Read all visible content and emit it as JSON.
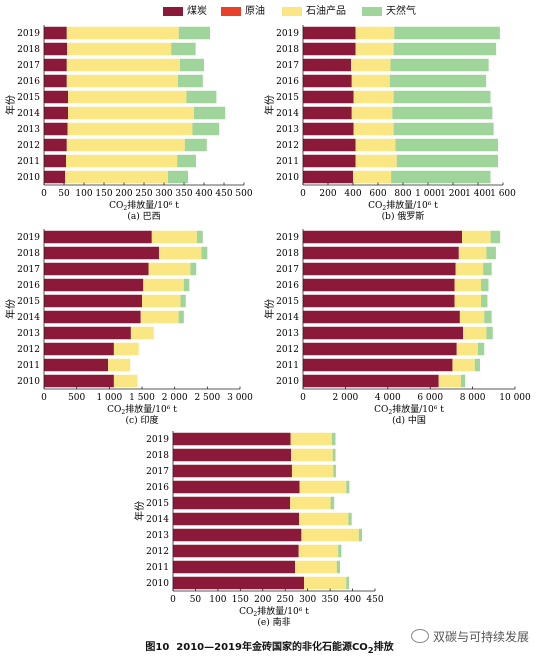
{
  "legend": {
    "coal": {
      "label": "煤炭",
      "color": "#8b1a3a"
    },
    "crude": {
      "label": "原油",
      "color": "#e8402a"
    },
    "oil_products": {
      "label": "石油产品",
      "color": "#fae784"
    },
    "gas": {
      "label": "天然气",
      "color": "#9fd49a"
    }
  },
  "common": {
    "y_label": "年份",
    "x_label_prefix": "CO",
    "x_label_sub": "2",
    "x_label_suffix": "排放量/10⁶ t"
  },
  "chart_data": [
    {
      "id": "brazil",
      "type": "bar",
      "orientation": "horizontal",
      "stacked": true,
      "caption": "(a) 巴西",
      "categories": [
        "2019",
        "2018",
        "2017",
        "2016",
        "2015",
        "2014",
        "2013",
        "2012",
        "2011",
        "2010"
      ],
      "xlim": [
        0,
        500
      ],
      "xticks": [
        0,
        50,
        100,
        150,
        200,
        250,
        300,
        350,
        400,
        450,
        500
      ],
      "xtick_labels": [
        "0",
        "50",
        "100",
        "150",
        "200",
        "250",
        "300",
        "350",
        "400",
        "450",
        "500"
      ],
      "series": [
        {
          "key": "coal",
          "values": [
            57,
            58,
            57,
            57,
            60,
            60,
            59,
            57,
            55,
            53
          ]
        },
        {
          "key": "crude",
          "values": [
            0,
            0,
            0,
            0,
            0,
            0,
            0,
            0,
            0,
            0
          ]
        },
        {
          "key": "oil_products",
          "values": [
            280,
            260,
            283,
            278,
            296,
            315,
            312,
            295,
            278,
            257
          ]
        },
        {
          "key": "gas",
          "values": [
            78,
            61,
            60,
            62,
            75,
            78,
            67,
            55,
            47,
            50
          ]
        }
      ]
    },
    {
      "id": "russia",
      "type": "bar",
      "orientation": "horizontal",
      "stacked": true,
      "caption": "(b) 俄罗斯",
      "categories": [
        "2019",
        "2018",
        "2017",
        "2016",
        "2015",
        "2014",
        "2013",
        "2012",
        "2011",
        "2010"
      ],
      "xlim": [
        0,
        1600
      ],
      "xticks": [
        0,
        200,
        400,
        600,
        800,
        1000,
        1200,
        1400,
        1600
      ],
      "xtick_labels": [
        "0",
        "200",
        "400",
        "600",
        "800",
        "1 000",
        "1 200",
        "1 400",
        "1 600"
      ],
      "series": [
        {
          "key": "coal",
          "values": [
            420,
            420,
            385,
            390,
            405,
            390,
            405,
            420,
            420,
            400
          ]
        },
        {
          "key": "crude",
          "values": [
            0,
            0,
            0,
            0,
            0,
            0,
            0,
            0,
            0,
            0
          ]
        },
        {
          "key": "oil_products",
          "values": [
            310,
            305,
            315,
            305,
            320,
            325,
            320,
            320,
            330,
            305
          ]
        },
        {
          "key": "gas",
          "values": [
            845,
            820,
            785,
            770,
            775,
            800,
            800,
            820,
            810,
            795
          ]
        }
      ]
    },
    {
      "id": "india",
      "type": "bar",
      "orientation": "horizontal",
      "stacked": true,
      "caption": "(c) 印度",
      "categories": [
        "2019",
        "2018",
        "2017",
        "2016",
        "2015",
        "2014",
        "2013",
        "2012",
        "2011",
        "2010"
      ],
      "xlim": [
        0,
        3000
      ],
      "xticks": [
        0,
        500,
        1000,
        1500,
        2000,
        2500,
        3000
      ],
      "xtick_labels": [
        "0",
        "500",
        "1 000",
        "1 500",
        "2 000",
        "2 500",
        "3 000"
      ],
      "series": [
        {
          "key": "coal",
          "values": [
            1650,
            1760,
            1600,
            1520,
            1500,
            1480,
            1330,
            1070,
            980,
            1070
          ]
        },
        {
          "key": "crude",
          "values": [
            0,
            0,
            0,
            0,
            0,
            0,
            0,
            0,
            0,
            0
          ]
        },
        {
          "key": "oil_products",
          "values": [
            690,
            650,
            640,
            620,
            590,
            580,
            350,
            380,
            340,
            360
          ]
        },
        {
          "key": "gas",
          "values": [
            90,
            90,
            90,
            85,
            80,
            80,
            0,
            0,
            0,
            0
          ]
        }
      ]
    },
    {
      "id": "china",
      "type": "bar",
      "orientation": "horizontal",
      "stacked": true,
      "caption": "(d) 中国",
      "categories": [
        "2019",
        "2018",
        "2017",
        "2016",
        "2015",
        "2014",
        "2013",
        "2012",
        "2011",
        "2010"
      ],
      "xlim": [
        0,
        10000
      ],
      "xticks": [
        0,
        2000,
        4000,
        6000,
        8000,
        10000
      ],
      "xtick_labels": [
        "0",
        "2 000",
        "4 000",
        "6 000",
        "8 000",
        "10 000"
      ],
      "series": [
        {
          "key": "coal",
          "values": [
            7500,
            7350,
            7200,
            7150,
            7150,
            7400,
            7550,
            7250,
            7050,
            6400
          ]
        },
        {
          "key": "crude",
          "values": [
            0,
            0,
            0,
            0,
            0,
            0,
            0,
            0,
            0,
            0
          ]
        },
        {
          "key": "oil_products",
          "values": [
            1350,
            1300,
            1300,
            1250,
            1250,
            1150,
            1100,
            1000,
            1050,
            1050
          ]
        },
        {
          "key": "gas",
          "values": [
            450,
            450,
            400,
            350,
            300,
            350,
            300,
            300,
            250,
            200
          ]
        }
      ]
    },
    {
      "id": "south_africa",
      "type": "bar",
      "orientation": "horizontal",
      "stacked": true,
      "caption": "(e) 南非",
      "categories": [
        "2019",
        "2018",
        "2017",
        "2016",
        "2015",
        "2014",
        "2013",
        "2012",
        "2011",
        "2010"
      ],
      "xlim": [
        0,
        450
      ],
      "xticks": [
        0,
        50,
        100,
        150,
        200,
        250,
        300,
        350,
        400,
        450
      ],
      "xtick_labels": [
        "0",
        "50",
        "100",
        "150",
        "200",
        "250",
        "300",
        "350",
        "400",
        "450"
      ],
      "series": [
        {
          "key": "coal",
          "values": [
            262,
            263,
            265,
            282,
            261,
            281,
            286,
            280,
            272,
            292
          ]
        },
        {
          "key": "crude",
          "values": [
            0,
            0,
            0,
            0,
            0,
            0,
            0,
            0,
            0,
            0
          ]
        },
        {
          "key": "oil_products",
          "values": [
            92,
            93,
            92,
            104,
            90,
            110,
            128,
            88,
            93,
            94
          ]
        },
        {
          "key": "gas",
          "values": [
            8,
            6,
            6,
            7,
            8,
            7,
            7,
            7,
            7,
            6
          ]
        }
      ]
    }
  ],
  "figure_caption": {
    "number": "图10",
    "text": "2010—2019年金砖国家的非化石能源CO",
    "sub": "2",
    "suffix": "排放"
  },
  "watermark": "双碳与可持续发展"
}
